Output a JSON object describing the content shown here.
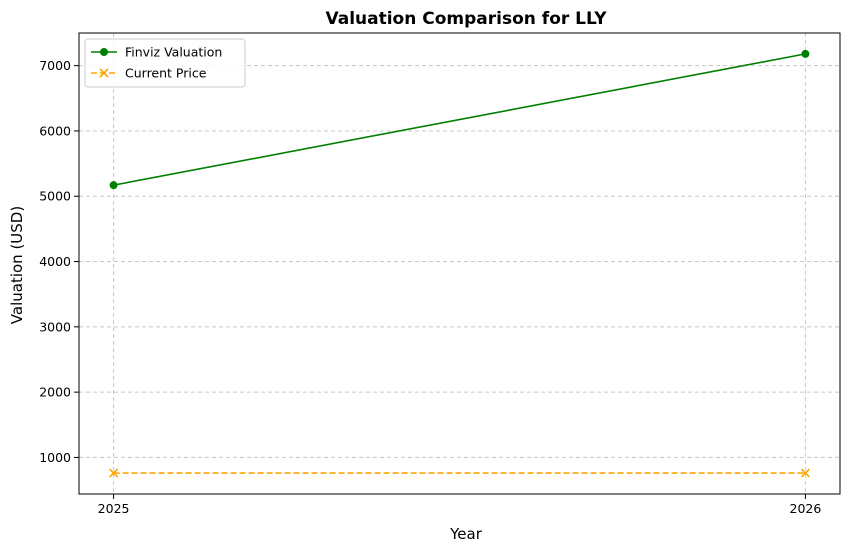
{
  "chart_data": {
    "type": "line",
    "title": "Valuation Comparison for LLY",
    "xlabel": "Year",
    "ylabel": "Valuation (USD)",
    "categories": [
      "2025",
      "2026"
    ],
    "x": [
      2025,
      2026
    ],
    "xlim": [
      2024.95,
      2026.05
    ],
    "ylim": [
      440,
      7500
    ],
    "yticks": [
      1000,
      2000,
      3000,
      4000,
      5000,
      6000,
      7000
    ],
    "grid": true,
    "legend_position": "top-left",
    "series": [
      {
        "name": "Finviz Valuation",
        "values": [
          5170,
          7180
        ],
        "color": "#008000",
        "marker": "circle",
        "linestyle": "solid"
      },
      {
        "name": "Current Price",
        "values": [
          760,
          760
        ],
        "color": "#FFA500",
        "marker": "x",
        "linestyle": "dashed"
      }
    ]
  }
}
